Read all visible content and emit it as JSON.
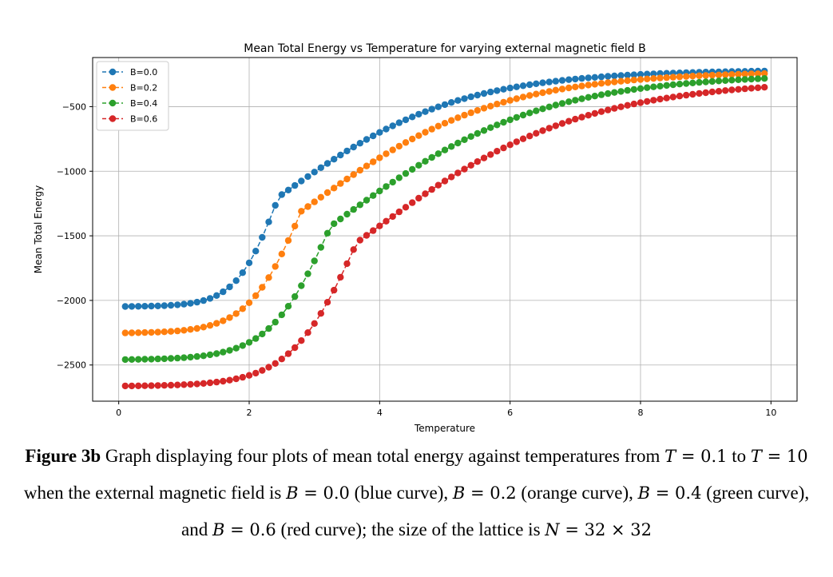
{
  "chart_data": {
    "type": "line",
    "title": "Mean Total Energy vs Temperature for varying external magnetic field B",
    "xlabel": "Temperature",
    "ylabel": "Mean Total Energy",
    "xlim": [
      -0.4,
      10.4
    ],
    "ylim": [
      -2780,
      -120
    ],
    "xticks": [
      0,
      2,
      4,
      6,
      8,
      10
    ],
    "xtick_labels": [
      "0",
      "2",
      "4",
      "6",
      "8",
      "10"
    ],
    "yticks": [
      -2500,
      -2000,
      -1500,
      -1000,
      -500
    ],
    "ytick_labels": [
      "−2500",
      "−2000",
      "−1500",
      "−1000",
      "−500"
    ],
    "grid": true,
    "legend_position": "top-left",
    "marker": "circle",
    "linestyle": "dashed",
    "x": {
      "start": 0.1,
      "step": 0.1,
      "count": 99
    },
    "series": [
      {
        "name": "B=0.0",
        "color": "#1f77b4",
        "ground": -2048,
        "high": -215,
        "tc": 2.45,
        "width_left": 0.33,
        "width_right": 1.35,
        "tail_k": 0.55
      },
      {
        "name": "B=0.2",
        "color": "#ff7f0e",
        "ground": -2254,
        "high": -225,
        "tc": 2.8,
        "width_left": 0.42,
        "width_right": 1.45,
        "tail_k": 0.5
      },
      {
        "name": "B=0.4",
        "color": "#2ca02c",
        "ground": -2460,
        "high": -245,
        "tc": 3.25,
        "width_left": 0.48,
        "width_right": 1.55,
        "tail_k": 0.45
      },
      {
        "name": "B=0.6",
        "color": "#d62728",
        "ground": -2664,
        "high": -285,
        "tc": 3.65,
        "width_left": 0.52,
        "width_right": 1.65,
        "tail_k": 0.4
      }
    ]
  },
  "caption": {
    "label": "Figure 3b",
    "text_1": " Graph displaying four plots of mean total energy against temperatures from ",
    "t1_var": "T",
    "t1_val": " = 0.1",
    "text_2": " to ",
    "t2_var": "T",
    "t2_val": " = 10",
    "text_3": " when the external magnetic field is ",
    "b0_var": "B",
    "b0_val": " = 0.0",
    "text_4": " (blue curve), ",
    "b1_var": "B",
    "b1_val": " = 0.2",
    "text_5": " (orange curve), ",
    "b2_var": "B",
    "b2_val": " = 0.4",
    "text_6": " (green curve), and ",
    "b3_var": "B",
    "b3_val": " = 0.6",
    "text_7": " (red curve); the size of the lattice is ",
    "n_var": "N",
    "n_val": " = 32 × 32"
  }
}
